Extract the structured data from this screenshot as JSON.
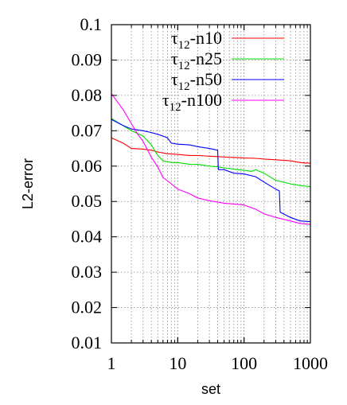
{
  "chart_data": {
    "type": "line",
    "xlabel": "set",
    "ylabel": "L2-error",
    "xscale": "log",
    "xlim": [
      1,
      1000
    ],
    "ylim": [
      0.01,
      0.1
    ],
    "grid": true,
    "legend_position": "top-right",
    "x_ticks": [
      "1",
      "10",
      "100",
      "1000"
    ],
    "x_tick_values": [
      1,
      10,
      100,
      1000
    ],
    "y_ticks": [
      "0.01",
      "0.02",
      "0.03",
      "0.04",
      "0.05",
      "0.06",
      "0.07",
      "0.08",
      "0.09",
      "0.1"
    ],
    "y_tick_values": [
      0.01,
      0.02,
      0.03,
      0.04,
      0.05,
      0.06,
      0.07,
      0.08,
      0.09,
      0.1
    ],
    "series": [
      {
        "name": "τ12-n10",
        "name_base": "τ",
        "name_sub": "12",
        "name_rest": "-n10",
        "color": "#ff0000",
        "x": [
          1,
          1.5,
          2,
          3,
          4,
          5,
          7,
          10,
          15,
          20,
          30,
          40,
          60,
          80,
          100,
          150,
          200,
          300,
          500,
          700,
          1000
        ],
        "y": [
          0.068,
          0.0665,
          0.065,
          0.0648,
          0.0645,
          0.064,
          0.0635,
          0.0633,
          0.063,
          0.063,
          0.0628,
          0.0627,
          0.0625,
          0.0624,
          0.0623,
          0.0622,
          0.062,
          0.0618,
          0.0615,
          0.061,
          0.0608
        ]
      },
      {
        "name": "τ12-n25",
        "name_base": "τ",
        "name_sub": "12",
        "name_rest": "-n25",
        "color": "#00dd00",
        "x": [
          1,
          2,
          3,
          4,
          5,
          6,
          8,
          10,
          15,
          20,
          30,
          40,
          50,
          80,
          100,
          130,
          150,
          200,
          300,
          500,
          700,
          1000
        ],
        "y": [
          0.0735,
          0.07,
          0.0685,
          0.066,
          0.063,
          0.0615,
          0.061,
          0.061,
          0.0605,
          0.0605,
          0.06,
          0.0598,
          0.0595,
          0.059,
          0.0588,
          0.0585,
          0.059,
          0.058,
          0.056,
          0.055,
          0.0545,
          0.0542
        ]
      },
      {
        "name": "τ12-n50",
        "name_base": "τ",
        "name_sub": "12",
        "name_rest": "-n50",
        "color": "#0000ff",
        "x": [
          1,
          1.5,
          2,
          3,
          4,
          5,
          6,
          7,
          8,
          10,
          15,
          20,
          30,
          40,
          41,
          50,
          70,
          100,
          150,
          200,
          300,
          340,
          350,
          500,
          700,
          1000
        ],
        "y": [
          0.0732,
          0.0715,
          0.0705,
          0.07,
          0.0695,
          0.069,
          0.0685,
          0.068,
          0.0665,
          0.0662,
          0.066,
          0.0655,
          0.065,
          0.0645,
          0.059,
          0.059,
          0.058,
          0.0578,
          0.057,
          0.0555,
          0.0535,
          0.053,
          0.047,
          0.0455,
          0.0445,
          0.0443
        ]
      },
      {
        "name": "τ12-n100",
        "name_base": "τ",
        "name_sub": "12",
        "name_rest": "-n100",
        "color": "#ff00ff",
        "x": [
          1,
          1.5,
          2,
          2.5,
          3,
          4,
          5,
          6,
          8,
          10,
          15,
          20,
          30,
          50,
          80,
          100,
          150,
          200,
          300,
          500,
          700,
          1000
        ],
        "y": [
          0.0805,
          0.076,
          0.072,
          0.069,
          0.067,
          0.0625,
          0.0598,
          0.0568,
          0.055,
          0.0535,
          0.0522,
          0.051,
          0.0502,
          0.0495,
          0.0492,
          0.049,
          0.0478,
          0.0465,
          0.0455,
          0.0445,
          0.0438,
          0.0435
        ]
      }
    ]
  }
}
